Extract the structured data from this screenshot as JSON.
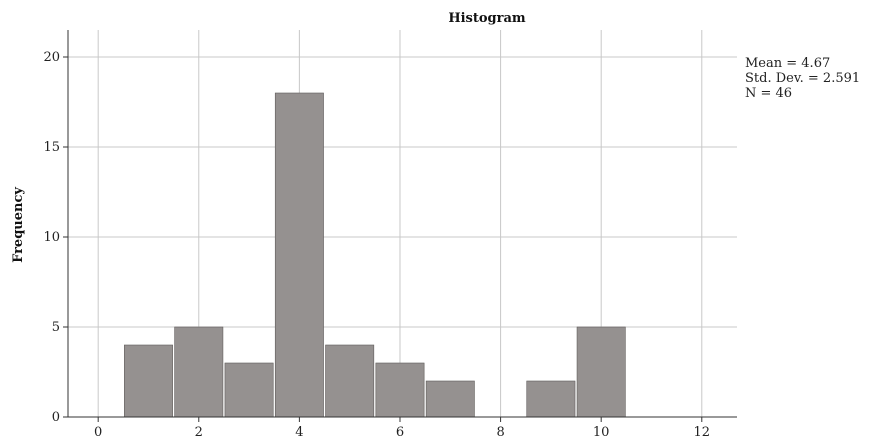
{
  "chart_data": {
    "type": "bar",
    "title": "Histogram",
    "xlabel": "",
    "ylabel": "Frequency",
    "xlim": [
      -0.6,
      12.7
    ],
    "ylim": [
      0,
      21.5
    ],
    "x_ticks": [
      0,
      2,
      4,
      6,
      8,
      10,
      12
    ],
    "y_ticks": [
      0,
      5,
      10,
      15,
      20
    ],
    "grid": true,
    "bins": [
      {
        "start": 0.5,
        "end": 1.5,
        "count": 4
      },
      {
        "start": 1.5,
        "end": 2.5,
        "count": 5
      },
      {
        "start": 2.5,
        "end": 3.5,
        "count": 3
      },
      {
        "start": 3.5,
        "end": 4.5,
        "count": 18
      },
      {
        "start": 4.5,
        "end": 5.5,
        "count": 4
      },
      {
        "start": 5.5,
        "end": 6.5,
        "count": 3
      },
      {
        "start": 6.5,
        "end": 7.5,
        "count": 2
      },
      {
        "start": 7.5,
        "end": 8.5,
        "count": 0
      },
      {
        "start": 8.5,
        "end": 9.5,
        "count": 2
      },
      {
        "start": 9.5,
        "end": 10.5,
        "count": 5
      }
    ],
    "statistics": [
      "Mean = 4.67",
      "Std. Dev. = 2.591",
      "N = 46"
    ],
    "colors": {
      "bar": "#959190",
      "grid": "#c8c8c8",
      "axis": "#333333"
    }
  }
}
